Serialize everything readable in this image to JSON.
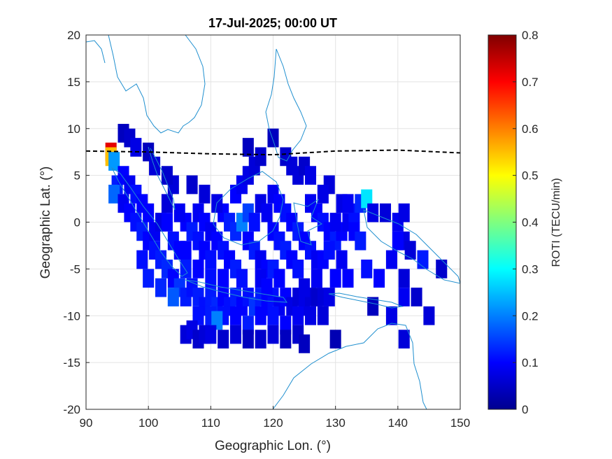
{
  "chart_data": {
    "type": "heatmap",
    "title": "17-Jul-2025; 00:00 UT",
    "xlabel": "Geographic Lon. (°)",
    "ylabel": "Geographic Lat. (°)",
    "xlim": [
      90,
      150
    ],
    "ylim": [
      -20,
      20
    ],
    "xticks": [
      90,
      100,
      110,
      120,
      130,
      140,
      150
    ],
    "yticks": [
      20,
      15,
      10,
      5,
      0,
      -5,
      -10,
      -15,
      -20
    ],
    "grid": true,
    "colorbar": {
      "label": "ROTI (TECU/min)",
      "range": [
        0,
        0.8
      ],
      "ticks": [
        0.8,
        0.7,
        0.6,
        0.5,
        0.4,
        0.3,
        0.2,
        0.1,
        0
      ],
      "colormap": "jet"
    },
    "magnetic_equator": {
      "style": "dashed",
      "color": "#000000",
      "points": [
        [
          90,
          7.6
        ],
        [
          100,
          7.5
        ],
        [
          110,
          7.3
        ],
        [
          120,
          7.2
        ],
        [
          130,
          7.6
        ],
        [
          140,
          7.7
        ],
        [
          150,
          7.4
        ]
      ]
    },
    "roti_cells": [
      [
        94,
        7.5,
        0.72
      ],
      [
        94,
        7,
        0.55
      ],
      [
        94.5,
        6.5,
        0.22
      ],
      [
        95,
        4,
        0.12
      ],
      [
        94.5,
        3,
        0.18
      ],
      [
        96,
        9.5,
        0.05
      ],
      [
        97,
        9,
        0.06
      ],
      [
        98,
        8,
        0.08
      ],
      [
        100,
        7.5,
        0.05
      ],
      [
        101,
        6,
        0.07
      ],
      [
        96,
        5,
        0.1
      ],
      [
        97,
        4,
        0.09
      ],
      [
        98,
        3,
        0.11
      ],
      [
        99,
        2,
        0.1
      ],
      [
        100,
        1,
        0.1
      ],
      [
        96,
        2,
        0.09
      ],
      [
        97,
        1,
        0.1
      ],
      [
        98,
        0,
        0.11
      ],
      [
        99,
        -1,
        0.12
      ],
      [
        100,
        -2,
        0.1
      ],
      [
        101,
        -3,
        0.11
      ],
      [
        102,
        -4,
        0.12
      ],
      [
        103,
        -5,
        0.13
      ],
      [
        104,
        -6,
        0.1
      ],
      [
        101,
        -1,
        0.09
      ],
      [
        102,
        0,
        0.08
      ],
      [
        103,
        2,
        0.07
      ],
      [
        104,
        4,
        0.07
      ],
      [
        103,
        5,
        0.06
      ],
      [
        104,
        -2,
        0.11
      ],
      [
        105,
        -3,
        0.1
      ],
      [
        106,
        -5,
        0.12
      ],
      [
        105,
        -7,
        0.14
      ],
      [
        104,
        -8,
        0.17
      ],
      [
        106,
        -8,
        0.12
      ],
      [
        107,
        -7,
        0.11
      ],
      [
        108,
        -8,
        0.12
      ],
      [
        109,
        -9,
        0.11
      ],
      [
        110,
        -8,
        0.12
      ],
      [
        111,
        -9,
        0.13
      ],
      [
        112,
        -8,
        0.1
      ],
      [
        113,
        -9,
        0.11
      ],
      [
        114,
        -8,
        0.12
      ],
      [
        115,
        -9,
        0.1
      ],
      [
        116,
        -8,
        0.11
      ],
      [
        117,
        -9,
        0.14
      ],
      [
        118,
        -8,
        0.12
      ],
      [
        119,
        -9,
        0.1
      ],
      [
        120,
        -8,
        0.11
      ],
      [
        121,
        -9,
        0.09
      ],
      [
        122,
        -8,
        0.1
      ],
      [
        123,
        -9,
        0.08
      ],
      [
        124,
        -8,
        0.07
      ],
      [
        125,
        -9,
        0.08
      ],
      [
        126,
        -8,
        0.07
      ],
      [
        127,
        -8,
        0.06
      ],
      [
        128,
        -8,
        0.07
      ],
      [
        106,
        0,
        0.1
      ],
      [
        107,
        -1,
        0.12
      ],
      [
        108,
        -2,
        0.11
      ],
      [
        109,
        -3,
        0.1
      ],
      [
        110,
        -4,
        0.11
      ],
      [
        108,
        1,
        0.09
      ],
      [
        109,
        0,
        0.1
      ],
      [
        110,
        -1,
        0.09
      ],
      [
        111,
        -2,
        0.1
      ],
      [
        112,
        -3,
        0.11
      ],
      [
        113,
        -4,
        0.1
      ],
      [
        114,
        -5,
        0.12
      ],
      [
        115,
        -6,
        0.11
      ],
      [
        112,
        1,
        0.1
      ],
      [
        113,
        0,
        0.12
      ],
      [
        114,
        -1,
        0.13
      ],
      [
        115,
        0,
        0.2
      ],
      [
        116,
        1,
        0.15
      ],
      [
        117,
        0,
        0.11
      ],
      [
        116,
        -2,
        0.1
      ],
      [
        117,
        -3,
        0.12
      ],
      [
        118,
        -4,
        0.09
      ],
      [
        119,
        -5,
        0.1
      ],
      [
        114,
        3,
        0.1
      ],
      [
        115,
        4,
        0.09
      ],
      [
        116,
        5,
        0.08
      ],
      [
        117,
        6,
        0.07
      ],
      [
        118,
        7,
        0.06
      ],
      [
        116,
        8,
        0.05
      ],
      [
        120,
        9,
        0.05
      ],
      [
        122,
        7,
        0.06
      ],
      [
        123,
        6,
        0.07
      ],
      [
        124,
        5,
        0.07
      ],
      [
        125,
        6,
        0.06
      ],
      [
        126,
        5,
        0.08
      ],
      [
        120,
        3,
        0.09
      ],
      [
        121,
        2,
        0.1
      ],
      [
        122,
        1,
        0.11
      ],
      [
        123,
        0,
        0.1
      ],
      [
        124,
        -1,
        0.12
      ],
      [
        125,
        -2,
        0.1
      ],
      [
        126,
        -3,
        0.11
      ],
      [
        127,
        -4,
        0.09
      ],
      [
        120,
        -1,
        0.1
      ],
      [
        121,
        -2,
        0.11
      ],
      [
        122,
        -3,
        0.12
      ],
      [
        123,
        -4,
        0.1
      ],
      [
        124,
        -5,
        0.11
      ],
      [
        120,
        -5,
        0.12
      ],
      [
        121,
        -6,
        0.1
      ],
      [
        118,
        2,
        0.08
      ],
      [
        119,
        1,
        0.09
      ],
      [
        126,
        2,
        0.09
      ],
      [
        127,
        1,
        0.1
      ],
      [
        128,
        0,
        0.11
      ],
      [
        129,
        -1,
        0.1
      ],
      [
        130,
        -2,
        0.12
      ],
      [
        131,
        -1,
        0.1
      ],
      [
        132,
        0,
        0.09
      ],
      [
        133,
        -1,
        0.1
      ],
      [
        134,
        -2,
        0.12
      ],
      [
        133,
        1,
        0.11
      ],
      [
        134,
        2,
        0.13
      ],
      [
        135,
        2.5,
        0.28
      ],
      [
        136,
        1,
        0.08
      ],
      [
        138,
        1,
        0.07
      ],
      [
        140,
        0,
        0.09
      ],
      [
        141,
        -2,
        0.08
      ],
      [
        142,
        -3,
        0.07
      ],
      [
        139,
        -4,
        0.09
      ],
      [
        137,
        -6,
        0.1
      ],
      [
        135,
        -5,
        0.11
      ],
      [
        132,
        -6,
        0.1
      ],
      [
        131,
        -4,
        0.09
      ],
      [
        130,
        -6,
        0.1
      ],
      [
        129,
        -8,
        0.08
      ],
      [
        128,
        -10,
        0.07
      ],
      [
        126,
        -10,
        0.08
      ],
      [
        124,
        -10,
        0.09
      ],
      [
        122,
        -11,
        0.1
      ],
      [
        120,
        -10,
        0.11
      ],
      [
        118,
        -10,
        0.1
      ],
      [
        116,
        -11,
        0.12
      ],
      [
        114,
        -10,
        0.1
      ],
      [
        112,
        -10,
        0.11
      ],
      [
        110,
        -10,
        0.12
      ],
      [
        108,
        -10,
        0.11
      ],
      [
        111,
        -10.5,
        0.2
      ],
      [
        106,
        -12,
        0.07
      ],
      [
        107,
        -11.5,
        0.08
      ],
      [
        108,
        -12.5,
        0.06
      ],
      [
        109,
        -12,
        0.07
      ],
      [
        110,
        -12,
        0.08
      ],
      [
        112,
        -12.5,
        0.06
      ],
      [
        114,
        -12,
        0.07
      ],
      [
        116,
        -12.5,
        0.05
      ],
      [
        118,
        -12.5,
        0.06
      ],
      [
        120,
        -12,
        0.07
      ],
      [
        122,
        -12.5,
        0.05
      ],
      [
        124,
        -12,
        0.06
      ],
      [
        125,
        -13,
        0.05
      ],
      [
        130,
        -12.5,
        0.04
      ],
      [
        136,
        -9,
        0.05
      ],
      [
        139,
        -10,
        0.08
      ],
      [
        141,
        -8,
        0.09
      ],
      [
        141,
        -6,
        0.07
      ],
      [
        143,
        -8,
        0.06
      ],
      [
        145,
        -10,
        0.07
      ],
      [
        141,
        -12.5,
        0.07
      ],
      [
        144,
        -4,
        0.12
      ],
      [
        147,
        -5,
        0.06
      ],
      [
        140,
        -2,
        0.1
      ],
      [
        141,
        1,
        0.08
      ],
      [
        107,
        4,
        0.06
      ],
      [
        109,
        3,
        0.07
      ],
      [
        111,
        2,
        0.08
      ],
      [
        118,
        -6,
        0.09
      ],
      [
        119,
        -7,
        0.1
      ],
      [
        127,
        -6,
        0.09
      ],
      [
        125,
        -7,
        0.08
      ],
      [
        128,
        -4,
        0.1
      ],
      [
        129,
        -3,
        0.11
      ],
      [
        130,
        0,
        0.09
      ],
      [
        131,
        2,
        0.08
      ],
      [
        132,
        2,
        0.09
      ],
      [
        129,
        4,
        0.07
      ],
      [
        128,
        3,
        0.08
      ],
      [
        112,
        -6,
        0.1
      ],
      [
        110,
        -6,
        0.11
      ],
      [
        108,
        -5,
        0.1
      ],
      [
        106,
        -3,
        0.1
      ],
      [
        105,
        1,
        0.09
      ],
      [
        103,
        0,
        0.1
      ],
      [
        102,
        -7,
        0.13
      ],
      [
        99,
        -4,
        0.11
      ],
      [
        100,
        -6,
        0.12
      ]
    ]
  }
}
